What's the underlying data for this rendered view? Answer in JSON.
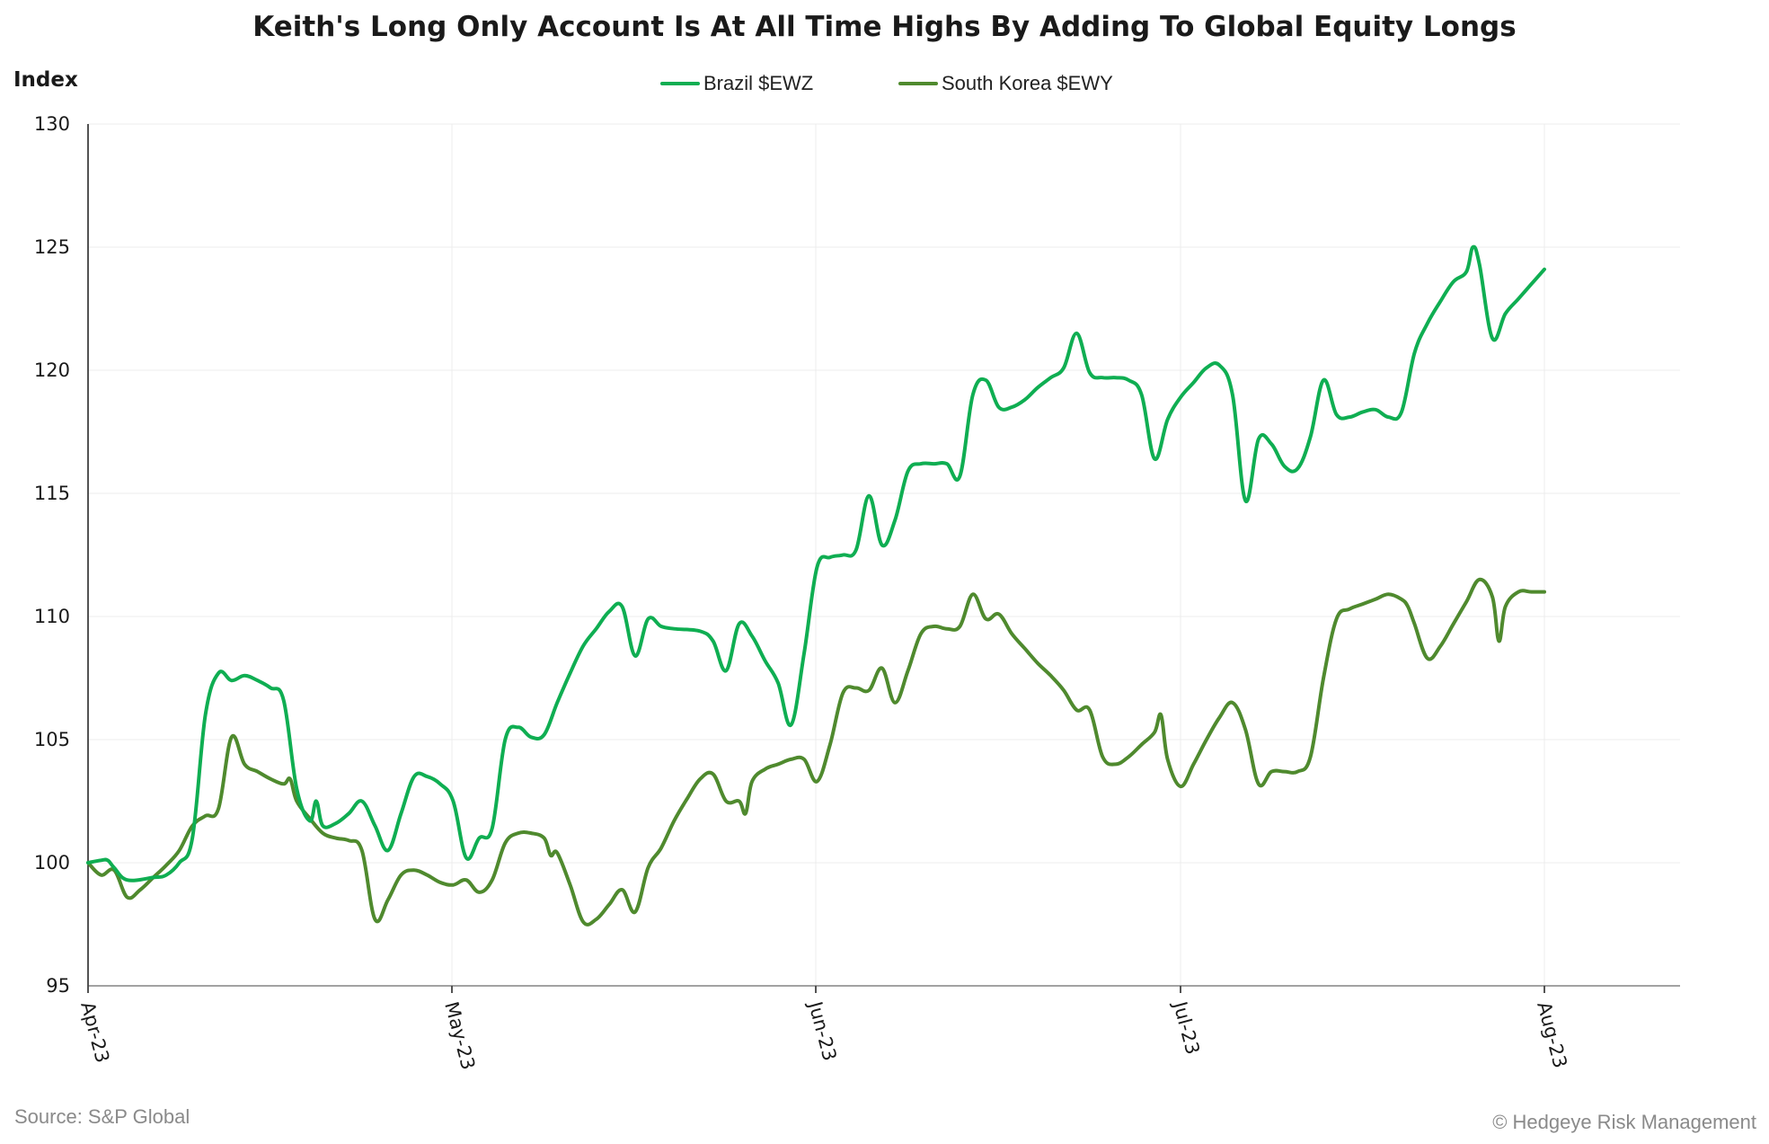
{
  "chart_data": {
    "type": "line",
    "title": "Keith's Long Only Account Is At All Time Highs By Adding To Global Equity Longs",
    "ylabel": "Index",
    "xlabel": "",
    "ylim": [
      95,
      130
    ],
    "yticks": [
      95,
      100,
      105,
      110,
      115,
      120,
      125,
      130
    ],
    "xticks": [
      "Apr-23",
      "May-23",
      "Jun-23",
      "Jul-23",
      "Aug-23"
    ],
    "grid": true,
    "legend_position": "top-center",
    "series": [
      {
        "name": "Brazil $EWZ",
        "color": "#0fae52",
        "points": [
          [
            0,
            100.0
          ],
          [
            1,
            100.1
          ],
          [
            1.5,
            100.1
          ],
          [
            2,
            99.8
          ],
          [
            3,
            99.3
          ],
          [
            5,
            99.4
          ],
          [
            6,
            99.5
          ],
          [
            7,
            100.0
          ],
          [
            8,
            101.0
          ],
          [
            9,
            106.0
          ],
          [
            10,
            107.7
          ],
          [
            11,
            107.4
          ],
          [
            12,
            107.6
          ],
          [
            13,
            107.4
          ],
          [
            14,
            107.1
          ],
          [
            15,
            106.6
          ],
          [
            16,
            103.0
          ],
          [
            17,
            101.7
          ],
          [
            17.5,
            102.5
          ],
          [
            18,
            101.5
          ],
          [
            19,
            101.6
          ],
          [
            20,
            102.0
          ],
          [
            21,
            102.5
          ],
          [
            22,
            101.5
          ],
          [
            23,
            100.5
          ],
          [
            24,
            102.0
          ],
          [
            25,
            103.5
          ],
          [
            26,
            103.5
          ],
          [
            27,
            103.2
          ],
          [
            28,
            102.5
          ],
          [
            29,
            100.2
          ],
          [
            30,
            101.0
          ],
          [
            31,
            101.4
          ],
          [
            32,
            105.0
          ],
          [
            33,
            105.5
          ],
          [
            34,
            105.1
          ],
          [
            35,
            105.2
          ],
          [
            36,
            106.5
          ],
          [
            37,
            107.7
          ],
          [
            38,
            108.8
          ],
          [
            39,
            109.5
          ],
          [
            40,
            110.2
          ],
          [
            41,
            110.4
          ],
          [
            42,
            108.4
          ],
          [
            43,
            109.9
          ],
          [
            44,
            109.6
          ],
          [
            45,
            109.5
          ],
          [
            47,
            109.4
          ],
          [
            48,
            109.0
          ],
          [
            49,
            107.8
          ],
          [
            50,
            109.7
          ],
          [
            51,
            109.2
          ],
          [
            52,
            108.2
          ],
          [
            53,
            107.3
          ],
          [
            54,
            105.6
          ],
          [
            55,
            108.5
          ],
          [
            56,
            112.0
          ],
          [
            57,
            112.4
          ],
          [
            58,
            112.5
          ],
          [
            59,
            112.7
          ],
          [
            60,
            114.9
          ],
          [
            61,
            112.9
          ],
          [
            62,
            113.9
          ],
          [
            63,
            115.9
          ],
          [
            64,
            116.2
          ],
          [
            65,
            116.2
          ],
          [
            66,
            116.2
          ],
          [
            67,
            115.7
          ],
          [
            68,
            119.0
          ],
          [
            69,
            119.6
          ],
          [
            70,
            118.5
          ],
          [
            71,
            118.5
          ],
          [
            72,
            118.8
          ],
          [
            73,
            119.3
          ],
          [
            74,
            119.7
          ],
          [
            75,
            120.1
          ],
          [
            76,
            121.5
          ],
          [
            77,
            119.9
          ],
          [
            78,
            119.7
          ],
          [
            79,
            119.7
          ],
          [
            80,
            119.6
          ],
          [
            81,
            119.0
          ],
          [
            82,
            116.4
          ],
          [
            83,
            118.0
          ],
          [
            84,
            118.9
          ],
          [
            85,
            119.5
          ],
          [
            86,
            120.1
          ],
          [
            87,
            120.2
          ],
          [
            88,
            119.0
          ],
          [
            89,
            114.7
          ],
          [
            90,
            117.2
          ],
          [
            91,
            117.0
          ],
          [
            92,
            116.1
          ],
          [
            93,
            116.0
          ],
          [
            94,
            117.3
          ],
          [
            95,
            119.6
          ],
          [
            96,
            118.2
          ],
          [
            97,
            118.1
          ],
          [
            98,
            118.3
          ],
          [
            99,
            118.4
          ],
          [
            100,
            118.1
          ],
          [
            101,
            118.3
          ],
          [
            102,
            120.7
          ],
          [
            103,
            121.9
          ],
          [
            104,
            122.8
          ],
          [
            105,
            123.6
          ],
          [
            106,
            124.0
          ],
          [
            106.5,
            125.0
          ],
          [
            107,
            124.3
          ],
          [
            108,
            121.3
          ],
          [
            109,
            122.3
          ],
          [
            110,
            122.9
          ],
          [
            111,
            123.5
          ],
          [
            112,
            124.1
          ]
        ]
      },
      {
        "name": "South Korea $EWY",
        "color": "#4f8a2e",
        "points": [
          [
            0,
            100.0
          ],
          [
            1,
            99.5
          ],
          [
            2,
            99.7
          ],
          [
            3,
            98.6
          ],
          [
            4,
            98.9
          ],
          [
            5,
            99.4
          ],
          [
            6,
            99.9
          ],
          [
            7,
            100.5
          ],
          [
            8,
            101.5
          ],
          [
            9,
            101.9
          ],
          [
            10,
            102.2
          ],
          [
            11,
            105.1
          ],
          [
            12,
            104.0
          ],
          [
            13,
            103.7
          ],
          [
            14,
            103.4
          ],
          [
            15,
            103.2
          ],
          [
            15.5,
            103.4
          ],
          [
            16,
            102.5
          ],
          [
            17,
            101.8
          ],
          [
            18,
            101.2
          ],
          [
            19,
            101.0
          ],
          [
            20,
            100.9
          ],
          [
            21,
            100.5
          ],
          [
            22,
            97.7
          ],
          [
            23,
            98.5
          ],
          [
            24,
            99.5
          ],
          [
            25,
            99.7
          ],
          [
            26,
            99.5
          ],
          [
            27,
            99.2
          ],
          [
            28,
            99.1
          ],
          [
            29,
            99.3
          ],
          [
            30,
            98.8
          ],
          [
            31,
            99.3
          ],
          [
            32,
            100.8
          ],
          [
            33,
            101.2
          ],
          [
            34,
            101.2
          ],
          [
            35,
            101.0
          ],
          [
            35.5,
            100.3
          ],
          [
            36,
            100.4
          ],
          [
            37,
            99.1
          ],
          [
            38,
            97.6
          ],
          [
            39,
            97.7
          ],
          [
            40,
            98.3
          ],
          [
            41,
            98.9
          ],
          [
            42,
            98.0
          ],
          [
            43,
            99.8
          ],
          [
            44,
            100.6
          ],
          [
            45,
            101.7
          ],
          [
            46,
            102.6
          ],
          [
            47,
            103.4
          ],
          [
            48,
            103.6
          ],
          [
            49,
            102.5
          ],
          [
            50,
            102.5
          ],
          [
            50.5,
            102.0
          ],
          [
            51,
            103.3
          ],
          [
            52,
            103.8
          ],
          [
            53,
            104.0
          ],
          [
            54,
            104.2
          ],
          [
            55,
            104.2
          ],
          [
            56,
            103.3
          ],
          [
            57,
            104.8
          ],
          [
            58,
            106.9
          ],
          [
            59,
            107.1
          ],
          [
            60,
            107.0
          ],
          [
            61,
            107.9
          ],
          [
            62,
            106.5
          ],
          [
            63,
            107.8
          ],
          [
            64,
            109.3
          ],
          [
            65,
            109.6
          ],
          [
            66,
            109.5
          ],
          [
            67,
            109.6
          ],
          [
            68,
            110.9
          ],
          [
            69,
            109.9
          ],
          [
            70,
            110.1
          ],
          [
            71,
            109.3
          ],
          [
            72,
            108.7
          ],
          [
            73,
            108.1
          ],
          [
            74,
            107.6
          ],
          [
            75,
            107.0
          ],
          [
            76,
            106.2
          ],
          [
            77,
            106.2
          ],
          [
            78,
            104.3
          ],
          [
            79,
            104.0
          ],
          [
            80,
            104.3
          ],
          [
            81,
            104.8
          ],
          [
            82,
            105.3
          ],
          [
            82.5,
            106.0
          ],
          [
            83,
            104.2
          ],
          [
            84,
            103.1
          ],
          [
            85,
            104.0
          ],
          [
            86,
            105.0
          ],
          [
            87,
            105.9
          ],
          [
            88,
            106.5
          ],
          [
            89,
            105.4
          ],
          [
            90,
            103.2
          ],
          [
            91,
            103.7
          ],
          [
            92,
            103.7
          ],
          [
            93,
            103.7
          ],
          [
            94,
            104.3
          ],
          [
            95,
            107.5
          ],
          [
            96,
            109.9
          ],
          [
            97,
            110.3
          ],
          [
            98,
            110.5
          ],
          [
            99,
            110.7
          ],
          [
            100,
            110.9
          ],
          [
            101,
            110.7
          ],
          [
            101.5,
            110.4
          ],
          [
            102,
            109.7
          ],
          [
            103,
            108.3
          ],
          [
            104,
            108.8
          ],
          [
            105,
            109.7
          ],
          [
            106,
            110.6
          ],
          [
            107,
            111.5
          ],
          [
            108,
            110.8
          ],
          [
            108.5,
            109.0
          ],
          [
            109,
            110.4
          ],
          [
            110,
            111.0
          ],
          [
            111,
            111.0
          ],
          [
            112,
            111.0
          ]
        ]
      }
    ],
    "x_tick_positions": [
      0,
      27.9,
      55.9,
      84.0,
      112.0
    ]
  },
  "footer": {
    "source": "Source: S&P Global",
    "credit": "© Hedgeye Risk Management"
  }
}
